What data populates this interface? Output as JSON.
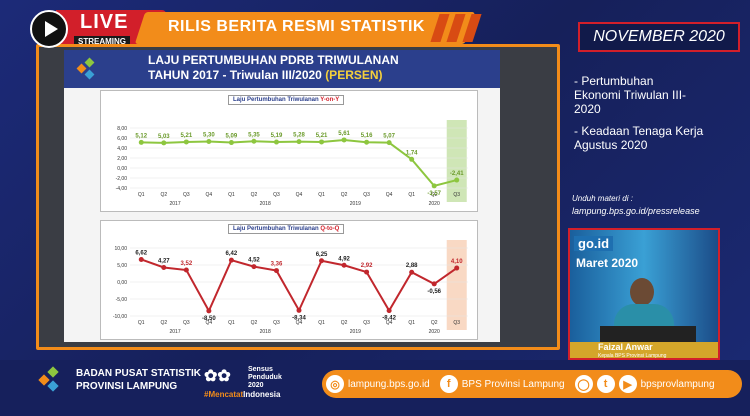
{
  "header": {
    "live_label": "LIVE",
    "streaming_label": "STREAMING",
    "title": "RILIS BERITA RESMI STATISTIK",
    "date": "NOVEMBER 2020"
  },
  "slide": {
    "title_line1": "LAJU PERTUMBUHAN PDRB TRIWULANAN",
    "title_line2": "TAHUN 2017 - Triwulan III/2020",
    "title_unit": "(PERSEN)",
    "chart1_label": "Laju Pertumbuhan Triwulanan",
    "chart1_label_suffix": "Y-on-Y",
    "chart2_label": "Laju Pertumbuhan Triwulanan",
    "chart2_label_suffix": "Q-to-Q"
  },
  "chart_data": [
    {
      "type": "line",
      "title": "Laju Pertumbuhan Triwulanan Y-on-Y",
      "categories": [
        "Q1",
        "Q2",
        "Q3",
        "Q4",
        "Q1",
        "Q2",
        "Q3",
        "Q4",
        "Q1",
        "Q2",
        "Q3",
        "Q4",
        "Q1",
        "Q2",
        "Q3"
      ],
      "years": [
        "2017",
        "2018",
        "2019",
        "2020"
      ],
      "values": [
        5.12,
        5.03,
        5.21,
        5.3,
        5.09,
        5.35,
        5.19,
        5.28,
        5.21,
        5.61,
        5.16,
        5.07,
        1.74,
        -3.57,
        -2.41
      ],
      "value_labels": [
        "5,12",
        "5,03",
        "5,21",
        "5,30",
        "5,09",
        "5,35",
        "5,19",
        "5,28",
        "5,21",
        "5,61",
        "5,16",
        "5,07",
        "1,74",
        "-3,57",
        "-2,41"
      ],
      "ylim": [
        -4,
        8
      ],
      "yticks": [
        "8,00",
        "6,00",
        "4,00",
        "2,00",
        "0,00",
        "-2,00",
        "-4,00"
      ],
      "color": "#8dc63f"
    },
    {
      "type": "line",
      "title": "Laju Pertumbuhan Triwulanan Q-to-Q",
      "categories": [
        "Q1",
        "Q2",
        "Q3",
        "Q4",
        "Q1",
        "Q2",
        "Q3",
        "Q4",
        "Q1",
        "Q2",
        "Q3",
        "Q4",
        "Q1",
        "Q2",
        "Q3"
      ],
      "years": [
        "2017",
        "2018",
        "2019",
        "2020"
      ],
      "values": [
        6.62,
        4.27,
        3.52,
        -8.5,
        6.42,
        4.52,
        3.36,
        -8.34,
        6.25,
        4.92,
        2.92,
        -8.42,
        2.88,
        -0.56,
        4.1
      ],
      "value_labels": [
        "6,62",
        "4,27",
        "3,52",
        "-8,50",
        "6,42",
        "4,52",
        "3,36",
        "-8,34",
        "6,25",
        "4,92",
        "2,92",
        "-8,42",
        "2,88",
        "-0,56",
        "4,10"
      ],
      "ylim": [
        -10,
        10
      ],
      "yticks": [
        "10,00",
        "5,00",
        "0,00",
        "-5,00",
        "-10,00"
      ],
      "color": "#c1272d"
    }
  ],
  "right_panel": {
    "note1": "- Pertumbuhan Ekonomi Triwulan III-2020",
    "note2": "- Keadaan Tenaga Kerja Agustus 2020",
    "download_label": "Unduh materi di :",
    "download_url": "lampung.bps.go.id/pressrelease",
    "video_text1": "go.id",
    "video_text2": "Maret 2020",
    "speaker_name": "Faizal Anwar",
    "speaker_title": "Kepala BPS Provinsi Lampung"
  },
  "footer": {
    "org_line1": "BADAN PUSAT STATISTIK",
    "org_line2": "PROVINSI LAMPUNG",
    "sp_line1": "Sensus",
    "sp_line2": "Penduduk",
    "sp_line3": "2020",
    "hashtag_prefix": "#Mencatat",
    "hashtag_suffix": "Indonesia",
    "website": "lampung.bps.go.id",
    "facebook": "BPS Provinsi Lampung",
    "social_handle": "bpsprovlampung"
  },
  "colors": {
    "accent": "#f28c1a",
    "live_red": "#d21f2a",
    "navy": "#16205c"
  }
}
